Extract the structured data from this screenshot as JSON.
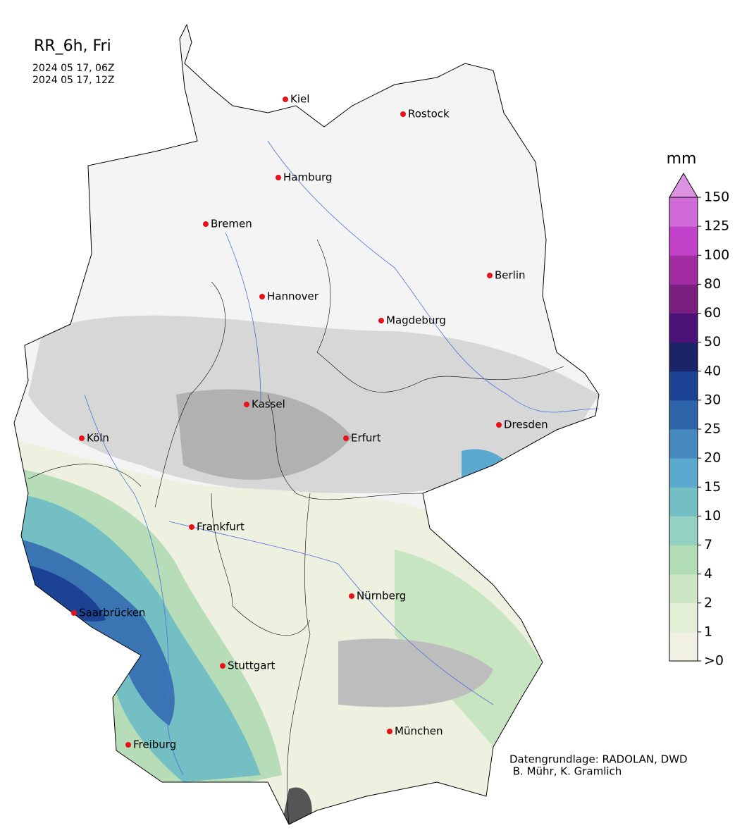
{
  "title": "RR_6h, Fri",
  "subtitle_lines": [
    "2024 05 17, 06Z",
    "2024 05 17, 12Z"
  ],
  "cities": [
    "Kiel",
    "Rostock",
    "Hamburg",
    "Bremen",
    "Berlin",
    "Hannover",
    "Magdeburg",
    "Kassel",
    "Köln",
    "Erfurt",
    "Dresden",
    "Frankfurt",
    "Nürnberg",
    "Saarbrücken",
    "Stuttgart",
    "Freiburg",
    "München"
  ],
  "credits": [
    "Datengrundlage: RADOLAN, DWD",
    " B. Mühr, K. Gramlich"
  ],
  "colorbar": {
    "unit": "mm",
    "ticks": [
      {
        "value": 0,
        "label": ">0"
      },
      1,
      2,
      4,
      7,
      10,
      15,
      20,
      25,
      30,
      40,
      50,
      60,
      80,
      100,
      125,
      150
    ],
    "colors": [
      "#f0f1e2",
      "#e2efd6",
      "#cde7c6",
      "#b1dcb6",
      "#94d1c0",
      "#74bfc3",
      "#5ba9cf",
      "#4689be",
      "#2f66a9",
      "#1c4393",
      "#1b2467",
      "#4b1378",
      "#7a1f80",
      "#a12ca2",
      "#c141c9",
      "#d06bd8"
    ],
    "extend_color": "#dd92e1"
  }
}
